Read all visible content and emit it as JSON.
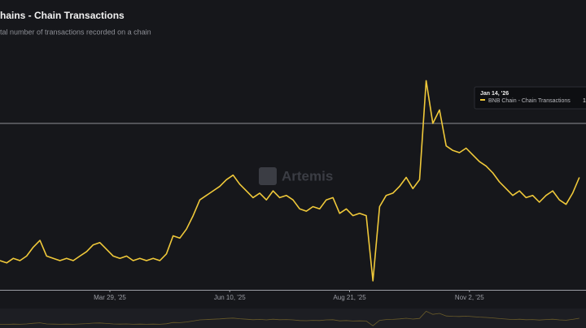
{
  "chart_data": {
    "type": "line",
    "title": "hains - Chain Transactions",
    "subtitle": "tal number of transactions recorded on a chain",
    "watermark": "Artemis",
    "tooltip": {
      "date": "Jan 14, '26",
      "value": "1"
    },
    "x": [
      0,
      4,
      8,
      12,
      16,
      20,
      24,
      28,
      32,
      36,
      40,
      44,
      48,
      52,
      56,
      60,
      64,
      68,
      72,
      76,
      80,
      84,
      88,
      92,
      96,
      100,
      104,
      108,
      112,
      116,
      120,
      124,
      128,
      132,
      136,
      140,
      144,
      148,
      152,
      156,
      160,
      164,
      168,
      172,
      176,
      180,
      184,
      188,
      192,
      196,
      200,
      204,
      208,
      212,
      216,
      220,
      224,
      228,
      232,
      236,
      240,
      244,
      248,
      252,
      256,
      260,
      264,
      268,
      272,
      276,
      280,
      284,
      288,
      292,
      296,
      300,
      304,
      308,
      312,
      316,
      320,
      324,
      328,
      332,
      336,
      340,
      344,
      348
    ],
    "series": [
      {
        "name": "BNB Chain - Chain Transactions",
        "color": "#f0c93a",
        "values": [
          13,
          12,
          14,
          13,
          15,
          19,
          22,
          15,
          14,
          13,
          14,
          13,
          15,
          17,
          20,
          21,
          18,
          15,
          14,
          15,
          13,
          14,
          13,
          14,
          13,
          16,
          24,
          23,
          27,
          33,
          40,
          42,
          44,
          46,
          49,
          51,
          47,
          44,
          41,
          43,
          40,
          44,
          41,
          42,
          40,
          36,
          35,
          37,
          36,
          40,
          41,
          34,
          36,
          33,
          34,
          33,
          4,
          37,
          42,
          43,
          46,
          50,
          45,
          49,
          93,
          74,
          80,
          64,
          62,
          61,
          63,
          60,
          57,
          55,
          52,
          48,
          45,
          42,
          44,
          41,
          42,
          39,
          42,
          44,
          40,
          38,
          43,
          50
        ]
      }
    ],
    "xlim": [
      0,
      352
    ],
    "ylim": [
      0,
      100
    ],
    "xticks": [
      {
        "value": 66,
        "label": "Mar 29, '25"
      },
      {
        "value": 138,
        "label": "Jun 10, '25"
      },
      {
        "value": 210,
        "label": "Aug 21, '25"
      },
      {
        "value": 282,
        "label": "Nov 2, '25"
      }
    ]
  }
}
